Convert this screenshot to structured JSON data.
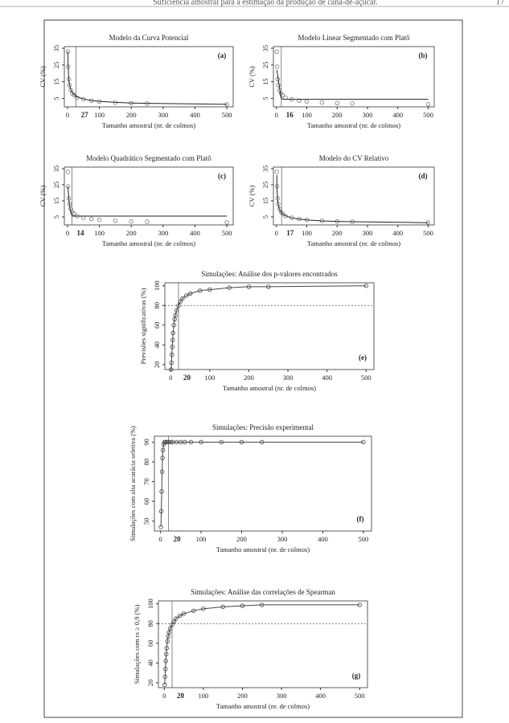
{
  "header": {
    "title": "Suficiência amostral para a estimação da produção de cana-de-açúcar.",
    "page": "17"
  },
  "chart_data": [
    {
      "type": "scatter",
      "title": "Modelo da Curva Potencial",
      "panel": "(a)",
      "xlabel": "Tamanho amostral (nr. de colmos)",
      "ylabel": "CV (%)",
      "xlim": [
        -10,
        520
      ],
      "ylim": [
        0,
        36
      ],
      "xticks": [
        0,
        100,
        200,
        300,
        400,
        500
      ],
      "yticks": [
        5,
        15,
        25,
        35
      ],
      "vline": 27,
      "x": [
        1,
        2,
        4,
        6,
        10,
        15,
        20,
        30,
        50,
        75,
        100,
        150,
        200,
        250,
        500
      ],
      "series": [
        {
          "color": "#777777",
          "mode": "markers",
          "values": [
            33,
            24,
            16.5,
            13,
            10,
            8,
            7,
            5.5,
            4.5,
            3.7,
            3.2,
            2.6,
            2.2,
            2,
            1.5
          ]
        },
        {
          "color": "#222222",
          "mode": "lines",
          "values": [
            33,
            23.3,
            16.5,
            13.5,
            10.4,
            8.5,
            7.4,
            6,
            4.7,
            3.8,
            3.3,
            2.7,
            2.3,
            2.1,
            1.5
          ]
        }
      ]
    },
    {
      "type": "scatter",
      "title": "Modelo Linear Segmentado com Platô",
      "panel": "(b)",
      "xlabel": "Tamanho amostral (nr. de colmos)",
      "ylabel": "CV (%)",
      "xlim": [
        -10,
        520
      ],
      "ylim": [
        0,
        36
      ],
      "xticks": [
        0,
        100,
        200,
        300,
        400,
        500
      ],
      "yticks": [
        5,
        15,
        25,
        35
      ],
      "vline": 16,
      "x": [
        1,
        2,
        4,
        6,
        10,
        15,
        20,
        30,
        50,
        75,
        100,
        150,
        200,
        250,
        500
      ],
      "series": [
        {
          "color": "#777777",
          "mode": "markers",
          "values": [
            33,
            24,
            16.5,
            13,
            10,
            8,
            7,
            5.5,
            4.5,
            3.7,
            3.2,
            2.6,
            2.2,
            2,
            1.5
          ]
        },
        {
          "color": "#222222",
          "mode": "lines",
          "values": [
            22,
            21,
            19,
            16.5,
            11.5,
            5.5,
            4.5,
            4.5,
            4.5,
            4.5,
            4.5,
            4.5,
            4.5,
            4.5,
            4.5
          ]
        }
      ]
    },
    {
      "type": "scatter",
      "title": "Modelo Quadrático Segmentado com Platô",
      "panel": "(c)",
      "xlabel": "Tamanho amostral (nr. de colmos)",
      "ylabel": "CV (%)",
      "xlim": [
        -10,
        520
      ],
      "ylim": [
        0,
        36
      ],
      "xticks": [
        0,
        100,
        200,
        300,
        400,
        500
      ],
      "yticks": [
        5,
        15,
        25,
        35
      ],
      "vline": 14,
      "x": [
        1,
        2,
        4,
        6,
        10,
        15,
        20,
        30,
        50,
        75,
        100,
        150,
        200,
        250,
        500
      ],
      "series": [
        {
          "color": "#777777",
          "mode": "markers",
          "values": [
            33,
            24,
            16.5,
            13,
            10,
            8,
            7,
            5.5,
            4.5,
            3.7,
            3.2,
            2.6,
            2.2,
            2,
            1.5
          ]
        },
        {
          "color": "#222222",
          "mode": "lines",
          "values": [
            24,
            21.5,
            17,
            13,
            8,
            5.5,
            5.5,
            5.5,
            5.5,
            5.5,
            5.5,
            5.5,
            5.5,
            5.5,
            5.5
          ]
        }
      ]
    },
    {
      "type": "scatter",
      "title": "Modelo do CV Relativo",
      "panel": "(d)",
      "xlabel": "Tamanho amostral (nr. de colmos)",
      "ylabel": "CV (%)",
      "xlim": [
        -10,
        520
      ],
      "ylim": [
        0,
        36
      ],
      "xticks": [
        0,
        100,
        200,
        300,
        400,
        500
      ],
      "yticks": [
        5,
        15,
        25,
        35
      ],
      "vline": 17,
      "x": [
        1,
        2,
        4,
        6,
        10,
        15,
        20,
        30,
        50,
        75,
        100,
        150,
        200,
        250,
        500
      ],
      "series": [
        {
          "color": "#777777",
          "mode": "markers",
          "values": [
            33,
            24,
            16.5,
            13,
            10,
            8,
            7,
            5.5,
            4.5,
            3.7,
            3.2,
            2.6,
            2.2,
            2,
            1.5
          ]
        },
        {
          "color": "#222222",
          "mode": "lines",
          "values": [
            31,
            22,
            15.5,
            12.6,
            9.8,
            8,
            6.9,
            5.7,
            4.4,
            3.6,
            3.1,
            2.5,
            2.2,
            2,
            1.4
          ]
        }
      ]
    },
    {
      "type": "scatter",
      "title": "Simulações: Análise dos p-valores encontrados",
      "panel": "(e)",
      "xlabel": "Tamanho amostral (nr. de colmos)",
      "ylabel": "Previsões significativas (%)",
      "xlim": [
        -15,
        520
      ],
      "ylim": [
        15,
        103
      ],
      "xticks": [
        0,
        100,
        200,
        300,
        400,
        500
      ],
      "yticks": [
        20,
        40,
        60,
        80,
        100
      ],
      "vline": 20,
      "hline": 80,
      "x": [
        1,
        2,
        3,
        4,
        5,
        6,
        8,
        10,
        12,
        15,
        20,
        25,
        30,
        40,
        50,
        75,
        100,
        150,
        200,
        250,
        500
      ],
      "series": [
        {
          "color": "#444444",
          "mode": "lines+markers",
          "values": [
            15,
            22,
            30,
            38,
            45,
            52,
            60,
            66,
            70,
            75,
            80,
            84,
            87,
            90,
            92,
            95,
            96,
            98,
            99,
            99,
            100
          ]
        }
      ]
    },
    {
      "type": "scatter",
      "title": "Simulações: Precisão experimental",
      "panel": "(f)",
      "xlabel": "Tamanho amostral (nr. de colmos)",
      "ylabel": "Simulações com alta acurácia seletiva (%)",
      "xlim": [
        -15,
        520
      ],
      "ylim": [
        45,
        93
      ],
      "xticks": [
        0,
        100,
        200,
        300,
        400,
        500
      ],
      "yticks": [
        50,
        60,
        70,
        80,
        90
      ],
      "vline": 20,
      "x": [
        1,
        2,
        3,
        4,
        5,
        6,
        8,
        10,
        12,
        15,
        20,
        25,
        30,
        40,
        50,
        60,
        75,
        100,
        150,
        200,
        250,
        500
      ],
      "series": [
        {
          "color": "#444444",
          "mode": "lines+markers",
          "values": [
            47,
            55,
            65,
            75,
            82,
            86,
            89,
            90,
            90,
            90,
            90,
            90,
            90,
            90,
            90,
            90,
            90,
            90,
            90,
            90,
            90,
            90
          ]
        }
      ]
    },
    {
      "type": "scatter",
      "title": "Simulações: Análise das correlações de Spearman",
      "panel": "(g)",
      "xlabel": "Tamanho amostral (nr. de colmos)",
      "ylabel": "Simulações com rs ≥ 0,9 (%)",
      "xlim": [
        -15,
        520
      ],
      "ylim": [
        15,
        103
      ],
      "xticks": [
        0,
        100,
        200,
        300,
        400,
        500
      ],
      "yticks": [
        20,
        40,
        60,
        80,
        100
      ],
      "vline": 20,
      "hline": 80,
      "x": [
        1,
        2,
        3,
        4,
        5,
        6,
        8,
        10,
        12,
        15,
        20,
        25,
        30,
        40,
        50,
        75,
        100,
        150,
        200,
        250,
        500
      ],
      "series": [
        {
          "color": "#444444",
          "mode": "lines+markers",
          "values": [
            18,
            26,
            34,
            42,
            49,
            55,
            62,
            67,
            71,
            75,
            79,
            82,
            85,
            88,
            90,
            93,
            95,
            97,
            98,
            99,
            99
          ]
        }
      ]
    }
  ]
}
